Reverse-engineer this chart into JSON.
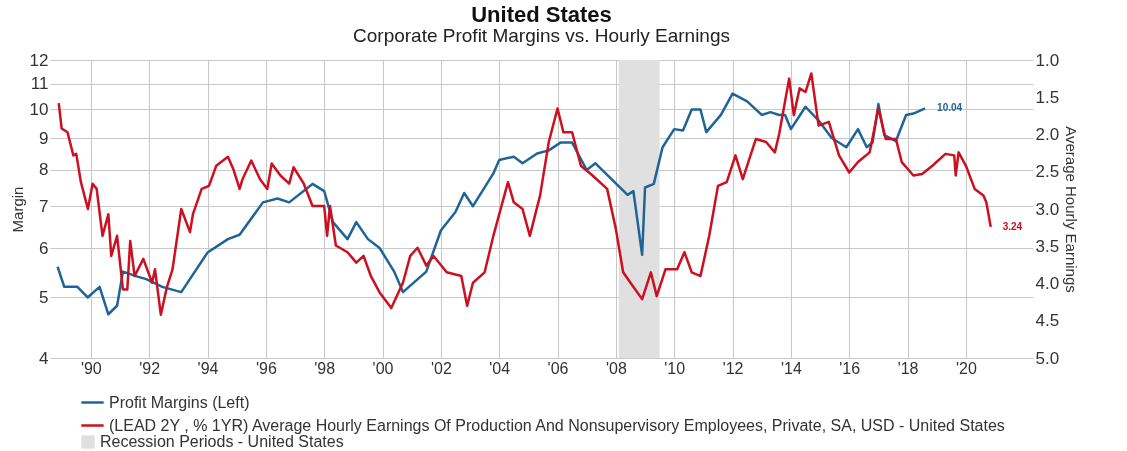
{
  "chart_data": {
    "type": "line",
    "title": "United States",
    "subtitle": "Corporate Profit Margins vs. Hourly Earnings",
    "ylabel": "Margin",
    "y2label": "Average Hourly Earnings",
    "log": "y",
    "grid": true,
    "legend": "bottom left",
    "xlim": [
      1988.6,
      2022.3
    ],
    "xticks": [
      {
        "value": 1990,
        "label": "'90"
      },
      {
        "value": 1992,
        "label": "'92"
      },
      {
        "value": 1994,
        "label": "'94"
      },
      {
        "value": 1996,
        "label": "'96"
      },
      {
        "value": 1998,
        "label": "'98"
      },
      {
        "value": 2000,
        "label": "'00"
      },
      {
        "value": 2002,
        "label": "'02"
      },
      {
        "value": 2004,
        "label": "'04"
      },
      {
        "value": 2006,
        "label": "'06"
      },
      {
        "value": 2008,
        "label": "'08"
      },
      {
        "value": 2010,
        "label": "'10"
      },
      {
        "value": 2012,
        "label": "'12"
      },
      {
        "value": 2014,
        "label": "'14"
      },
      {
        "value": 2016,
        "label": "'16"
      },
      {
        "value": 2018,
        "label": "'18"
      },
      {
        "value": 2020,
        "label": "'20"
      }
    ],
    "ylim": [
      4,
      12
    ],
    "yticks": [
      4,
      5,
      6,
      7,
      8,
      9,
      10,
      11,
      12
    ],
    "y2lim": [
      5.0,
      1.0
    ],
    "y2ticks": [
      {
        "value": 5,
        "label": "5.0"
      },
      {
        "value": 4.5,
        "label": "4.5"
      },
      {
        "value": 4,
        "label": "4.0"
      },
      {
        "value": 3.5,
        "label": "3.5"
      },
      {
        "value": 3,
        "label": "3.0"
      },
      {
        "value": 2.5,
        "label": "2.5"
      },
      {
        "value": 2,
        "label": "2.0"
      },
      {
        "value": 1.5,
        "label": "1.5"
      },
      {
        "value": 1,
        "label": "1.0"
      }
    ],
    "bands": [
      {
        "axis": "x",
        "from": 2008.1,
        "to": 2009.5,
        "label": "Recession Periods - United States",
        "color": "#e0e0e0"
      }
    ],
    "series": [
      {
        "name": "Profit Margins (Left)",
        "color": "#1f6498",
        "x": [
          1988.86,
          1989.09,
          1989.54,
          1989.89,
          1990.3,
          1990.6,
          1990.9,
          1991.1,
          1991.6,
          1991.9,
          1992.45,
          1993.1,
          1994.0,
          1994.7,
          1995.1,
          1995.9,
          1996.4,
          1996.8,
          1997.6,
          1998.0,
          1998.3,
          1998.8,
          1999.1,
          1999.5,
          1999.9,
          2000.4,
          2000.7,
          2001.5,
          2002.0,
          2002.5,
          2002.8,
          2003.1,
          2003.8,
          2004.0,
          2004.5,
          2004.8,
          2005.3,
          2005.7,
          2006.1,
          2006.5,
          2007.0,
          2007.3,
          2008.4,
          2008.6,
          2008.9,
          2009.0,
          2009.3,
          2009.6,
          2010.0,
          2010.3,
          2010.6,
          2010.9,
          2011.1,
          2011.6,
          2012.0,
          2012.5,
          2013.0,
          2013.3,
          2013.6,
          2013.8,
          2014.0,
          2014.5,
          2014.95,
          2015.4,
          2015.9,
          2016.3,
          2016.6,
          2016.8,
          2017.0,
          2017.2,
          2017.6,
          2017.95,
          2018.2,
          2018.6
        ],
        "values": [
          5.6,
          5.2,
          5.2,
          5.0,
          5.2,
          4.7,
          4.85,
          5.5,
          5.4,
          5.35,
          5.2,
          5.1,
          5.9,
          6.2,
          6.3,
          7.1,
          7.2,
          7.1,
          7.6,
          7.4,
          6.6,
          6.2,
          6.6,
          6.2,
          6.0,
          5.5,
          5.1,
          5.5,
          6.4,
          6.85,
          7.35,
          7.0,
          7.9,
          8.3,
          8.4,
          8.2,
          8.5,
          8.6,
          8.85,
          8.85,
          8.0,
          8.2,
          7.3,
          7.4,
          5.85,
          7.5,
          7.6,
          8.7,
          9.3,
          9.25,
          10.0,
          10.0,
          9.2,
          9.8,
          10.6,
          10.3,
          9.8,
          9.9,
          9.8,
          9.8,
          9.3,
          10.1,
          9.6,
          9.0,
          8.7,
          9.3,
          8.7,
          8.85,
          10.2,
          9.1,
          8.9,
          9.8,
          9.85,
          10.04
        ],
        "value_labels": [
          null,
          null,
          null,
          null,
          null,
          null,
          null,
          null,
          null,
          null,
          null,
          null,
          null,
          null,
          null,
          null,
          null,
          null,
          null,
          null,
          null,
          null,
          null,
          null,
          null,
          null,
          null,
          null,
          null,
          null,
          null,
          null,
          null,
          null,
          null,
          null,
          null,
          null,
          null,
          null,
          null,
          null,
          null,
          null,
          null,
          null,
          null,
          null,
          null,
          null,
          null,
          null,
          null,
          null,
          null,
          null,
          null,
          null,
          null,
          null,
          null,
          null,
          null,
          null,
          null,
          null,
          null,
          null,
          null,
          null,
          null,
          null,
          null,
          "10.04"
        ]
      },
      {
        "name": "(LEAD 2Y , % 1YR) Average Hourly Earnings Of Production And Nonsupervisory Employees, Private, SA, USD - United States",
        "color": "#cc1020",
        "axis": "y2",
        "x": [
          1988.9,
          1989.0,
          1989.2,
          1989.4,
          1989.5,
          1989.66,
          1989.9,
          1990.06,
          1990.2,
          1990.4,
          1990.6,
          1990.7,
          1990.9,
          1991.1,
          1991.25,
          1991.35,
          1991.5,
          1991.8,
          1992.1,
          1992.2,
          1992.4,
          1992.6,
          1992.8,
          1993.1,
          1993.4,
          1993.5,
          1993.8,
          1994.05,
          1994.3,
          1994.7,
          1994.9,
          1995.1,
          1995.2,
          1995.5,
          1995.8,
          1996.05,
          1996.2,
          1996.5,
          1996.8,
          1996.95,
          1997.3,
          1997.6,
          1998.0,
          1998.1,
          1998.2,
          1998.4,
          1998.8,
          1999.1,
          1999.35,
          1999.6,
          1999.9,
          2000.3,
          2000.7,
          2000.95,
          2001.2,
          2001.5,
          2001.75,
          2002.2,
          2002.7,
          2002.9,
          2003.1,
          2003.5,
          2003.8,
          2004.3,
          2004.5,
          2004.8,
          2005.05,
          2005.4,
          2005.7,
          2006.0,
          2006.2,
          2006.5,
          2006.8,
          2007.2,
          2007.7,
          2008.0,
          2008.25,
          2008.5,
          2008.9,
          2009.2,
          2009.4,
          2009.7,
          2010.1,
          2010.35,
          2010.6,
          2010.9,
          2011.2,
          2011.5,
          2011.8,
          2012.1,
          2012.35,
          2012.8,
          2013.15,
          2013.45,
          2013.6,
          2013.94,
          2014.1,
          2014.3,
          2014.5,
          2014.7,
          2014.95,
          2015.3,
          2015.65,
          2016.0,
          2016.3,
          2016.7,
          2017.0,
          2017.25,
          2017.6,
          2017.8,
          2018.2,
          2018.5,
          2018.85,
          2019.3,
          2019.6,
          2019.65,
          2019.75,
          2020.0,
          2020.3,
          2020.6,
          2020.7,
          2020.85
        ],
        "values": [
          1.58,
          1.92,
          1.97,
          2.28,
          2.26,
          2.64,
          3.0,
          2.66,
          2.73,
          3.36,
          3.07,
          3.63,
          3.36,
          4.08,
          4.08,
          3.43,
          3.9,
          3.67,
          3.99,
          3.81,
          4.42,
          4.06,
          3.81,
          3.0,
          3.31,
          3.07,
          2.73,
          2.69,
          2.42,
          2.3,
          2.48,
          2.73,
          2.6,
          2.35,
          2.6,
          2.73,
          2.39,
          2.55,
          2.66,
          2.44,
          2.66,
          2.96,
          2.96,
          3.36,
          2.96,
          3.49,
          3.58,
          3.72,
          3.63,
          3.9,
          4.12,
          4.33,
          3.99,
          3.63,
          3.52,
          3.76,
          3.63,
          3.85,
          3.9,
          4.3,
          3.99,
          3.85,
          3.36,
          2.64,
          2.91,
          3.0,
          3.36,
          2.82,
          2.1,
          1.65,
          1.97,
          1.97,
          2.42,
          2.55,
          2.73,
          3.27,
          3.85,
          3.99,
          4.21,
          3.85,
          4.17,
          3.81,
          3.81,
          3.58,
          3.85,
          3.9,
          3.36,
          2.69,
          2.64,
          2.28,
          2.6,
          2.06,
          2.1,
          2.24,
          1.99,
          1.25,
          1.74,
          1.38,
          1.43,
          1.18,
          1.88,
          1.83,
          2.28,
          2.51,
          2.37,
          2.24,
          1.65,
          2.06,
          2.06,
          2.37,
          2.55,
          2.53,
          2.42,
          2.26,
          2.28,
          2.55,
          2.24,
          2.42,
          2.73,
          2.82,
          2.91,
          3.24
        ],
        "value_labels": [
          null,
          null,
          null,
          null,
          null,
          null,
          null,
          null,
          null,
          null,
          null,
          null,
          null,
          null,
          null,
          null,
          null,
          null,
          null,
          null,
          null,
          null,
          null,
          null,
          null,
          null,
          null,
          null,
          null,
          null,
          null,
          null,
          null,
          null,
          null,
          null,
          null,
          null,
          null,
          null,
          null,
          null,
          null,
          null,
          null,
          null,
          null,
          null,
          null,
          null,
          null,
          null,
          null,
          null,
          null,
          null,
          null,
          null,
          null,
          null,
          null,
          null,
          null,
          null,
          null,
          null,
          null,
          null,
          null,
          null,
          null,
          null,
          null,
          null,
          null,
          null,
          null,
          null,
          null,
          null,
          null,
          null,
          null,
          null,
          null,
          null,
          null,
          null,
          null,
          null,
          null,
          null,
          null,
          null,
          null,
          null,
          null,
          null,
          null,
          null,
          null,
          null,
          null,
          null,
          null,
          null,
          null,
          null,
          null,
          null,
          null,
          null,
          null,
          null,
          null,
          null,
          null,
          null,
          null,
          null,
          null,
          "3.24"
        ]
      }
    ]
  }
}
